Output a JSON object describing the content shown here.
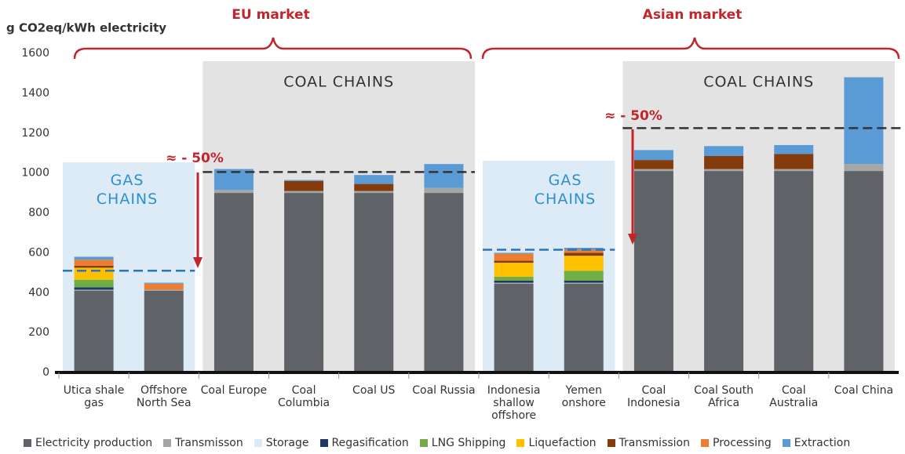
{
  "chart_data": {
    "type": "stacked_bar",
    "y_label": "g CO2eq/kWh electricity",
    "annotations": {
      "eu_market": "EU market",
      "asian_market": "Asian market",
      "coal_chains_eu": "COAL CHAINS",
      "coal_chains_asia": "COAL CHAINS",
      "gas_chains_eu": "GAS CHAINS",
      "gas_chains_asia": "GAS CHAINS",
      "reduction_eu": "≈ - 50%",
      "reduction_asia": "≈ - 50%"
    },
    "categories": [
      "Utica shale gas",
      "Offshore North Sea",
      "Coal Europe",
      "Coal Columbia",
      "Coal US",
      "Coal Russia",
      "Indonesia shallow offshore",
      "Yemen onshore",
      "Coal Indonesia",
      "Coal South Africa",
      "Coal Australia",
      "Coal China"
    ],
    "series": [
      {
        "name": "Electricity production",
        "color": "#5f6368",
        "values": [
          410,
          410,
          900,
          900,
          900,
          900,
          445,
          445,
          1010,
          1010,
          1010,
          1010
        ]
      },
      {
        "name": "Transmisson",
        "color": "#a6a6a6",
        "values": [
          5,
          5,
          15,
          10,
          10,
          25,
          5,
          5,
          10,
          10,
          10,
          35
        ]
      },
      {
        "name": "Storage",
        "color": "#dceaf7",
        "values": [
          0,
          0,
          0,
          0,
          0,
          0,
          0,
          0,
          0,
          0,
          0,
          0
        ]
      },
      {
        "name": "Regasification",
        "color": "#1f3864",
        "values": [
          12,
          0,
          0,
          0,
          0,
          0,
          10,
          10,
          0,
          0,
          0,
          0
        ]
      },
      {
        "name": "LNG Shipping",
        "color": "#70ad47",
        "values": [
          38,
          0,
          0,
          0,
          0,
          0,
          20,
          50,
          0,
          0,
          0,
          0
        ]
      },
      {
        "name": "Liquefaction",
        "color": "#ffc000",
        "values": [
          60,
          0,
          0,
          0,
          0,
          0,
          70,
          75,
          0,
          0,
          0,
          0
        ]
      },
      {
        "name": "Transmission",
        "color": "#843c0c",
        "values": [
          10,
          0,
          0,
          50,
          35,
          0,
          10,
          15,
          45,
          65,
          75,
          0
        ]
      },
      {
        "name": "Processing",
        "color": "#ed7d31",
        "values": [
          30,
          30,
          0,
          0,
          0,
          0,
          35,
          15,
          0,
          0,
          0,
          0
        ]
      },
      {
        "name": "Extraction",
        "color": "#5b9bd5",
        "values": [
          15,
          5,
          105,
          5,
          45,
          120,
          5,
          10,
          50,
          50,
          45,
          435
        ]
      }
    ],
    "reference_lines": [
      {
        "value": 510,
        "color": "#2e75b6",
        "from": 0,
        "to": 1
      },
      {
        "value": 1005,
        "color": "#333333",
        "from": 2,
        "to": 5
      },
      {
        "value": 615,
        "color": "#2e75b6",
        "from": 6,
        "to": 7
      },
      {
        "value": 1225,
        "color": "#333333",
        "from": 8,
        "to": 11
      }
    ],
    "ylim": [
      0,
      1600
    ],
    "yticks": [
      0,
      200,
      400,
      600,
      800,
      1000,
      1200,
      1400,
      1600
    ],
    "grid": false
  }
}
